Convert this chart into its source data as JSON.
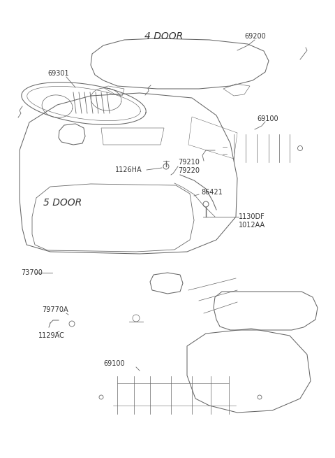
{
  "bg_color": "#ffffff",
  "line_color": "#666666",
  "text_color": "#333333",
  "label_color": "#333333",
  "labels": {
    "four_door": "4 DOOR",
    "five_door": "5 DOOR",
    "p69301": "69301",
    "p69200": "69200",
    "p69100_top": "69100",
    "p79210": "79210",
    "p79220": "79220",
    "p1126HA": "1126HA",
    "p86421": "86421",
    "p1130DF": "1130DF",
    "p1012AA": "1012AA",
    "p73700": "73700",
    "p79770A": "79770A",
    "p1129AC": "1129AC",
    "p69100_bot": "69100"
  },
  "font_size_section": 10,
  "font_size_label": 7.0
}
